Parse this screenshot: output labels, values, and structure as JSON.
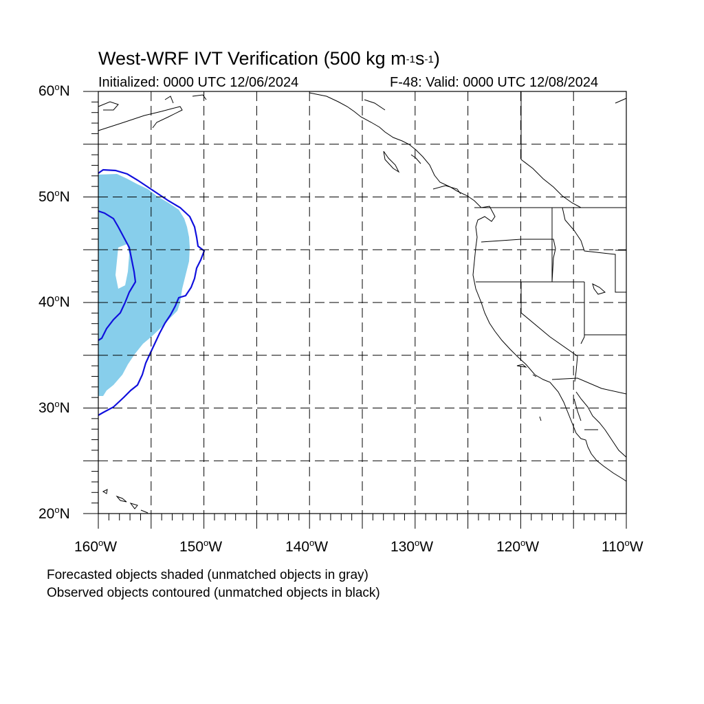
{
  "title": {
    "prefix": "West-WRF IVT Verification (500 kg m",
    "exp1": "-1",
    "mid": "s",
    "exp2": "-1",
    "suffix": ")"
  },
  "initialized": "Initialized: 0000 UTC 12/06/2024",
  "valid": "F-48: Valid: 0000 UTC 12/08/2024",
  "lat_labels": [
    "20",
    "30",
    "40",
    "50",
    "60"
  ],
  "lat_suffix": "N",
  "lon_labels": [
    "160",
    "150",
    "140",
    "130",
    "120",
    "110"
  ],
  "lon_suffix": "W",
  "degree_symbol": "o",
  "footer": {
    "line1": "Forecasted objects shaded (unmatched objects in gray)",
    "line2": "Observed objects contoured (unmatched objects in black)"
  },
  "colors": {
    "forecast_fill": "#87ceeb",
    "observed_contour": "#1010dd",
    "grid": "#000000",
    "coast": "#000000"
  }
}
